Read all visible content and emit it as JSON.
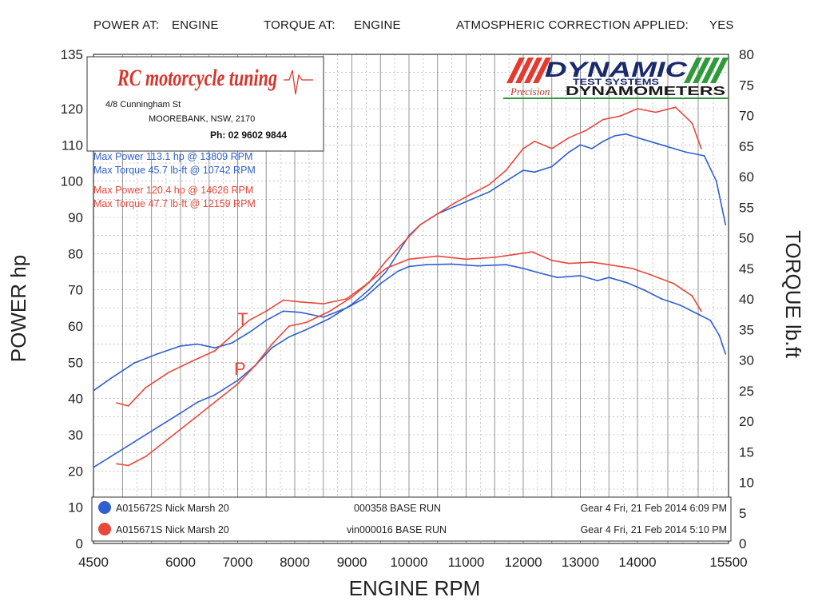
{
  "header": {
    "power_at_label": "POWER AT:",
    "power_at_value": "ENGINE",
    "torque_at_label": "TORQUE AT:",
    "torque_at_value": "ENGINE",
    "correction_label": "ATMOSPHERIC CORRECTION APPLIED:",
    "correction_value": "YES"
  },
  "shop": {
    "logo_text": "RC motorcycle tuning",
    "address1": "4/8 Cunningham St",
    "address2": "MOOREBANK, NSW, 2170",
    "phone": "Ph: 02 9602 9844"
  },
  "brand": {
    "name": "DYNAMIC",
    "sub": "TEST SYSTEMS",
    "tag1": "Precision",
    "tag2": "DYNAMOMETERS"
  },
  "summary": {
    "blue_power": "Max Power 113.1 hp @ 13809 RPM",
    "blue_torque": "Max Torque 45.7 lb-ft @ 10742 RPM",
    "red_power": "Max Power 120.4 hp @ 14626 RPM",
    "red_torque": "Max Torque 47.7 lb-ft @ 12159 RPM"
  },
  "curve_labels": {
    "torque": "T",
    "power": "P"
  },
  "runs": [
    {
      "id": "A015672S Nick Marsh 20",
      "run": "000358 BASE RUN",
      "info": "Gear 4 Fri, 21 Feb 2014 6:09 PM",
      "color": "#2f5fd0"
    },
    {
      "id": "A015671S Nick Marsh 20",
      "run": "vin000016 BASE RUN",
      "info": "Gear 4 Fri, 21 Feb 2014 5:10 PM",
      "color": "#e8473a"
    }
  ],
  "colors": {
    "blue": "#2f5fd0",
    "red": "#e8473a",
    "grid": "#6b6b6b"
  },
  "chart_data": {
    "type": "line",
    "xlabel": "ENGINE RPM",
    "ylabel": "POWER hp",
    "y2label": "TORQUE lb.ft",
    "xlim": [
      4500,
      15500
    ],
    "ylim": [
      0,
      135
    ],
    "y2lim": [
      0,
      80
    ],
    "x_ticks": [
      "4500",
      "6000",
      "7000",
      "8000",
      "9000",
      "10000",
      "11000",
      "12000",
      "13000",
      "14000",
      "15500"
    ],
    "y_ticks": [
      "0",
      "10",
      "20",
      "30",
      "40",
      "50",
      "60",
      "70",
      "80",
      "90",
      "100",
      "110",
      "120",
      "135"
    ],
    "y2_ticks": [
      "0",
      "5",
      "10",
      "15",
      "20",
      "25",
      "30",
      "35",
      "40",
      "45",
      "50",
      "55",
      "60",
      "65",
      "70",
      "75",
      "80"
    ],
    "grid": true,
    "series": [
      {
        "name": "A015672S Nick Marsh 20",
        "color": "#2f5fd0",
        "measure": "power",
        "axis": "left",
        "points": [
          [
            4500,
            21
          ],
          [
            4800,
            24
          ],
          [
            5200,
            28
          ],
          [
            5600,
            32
          ],
          [
            6000,
            36
          ],
          [
            6300,
            39
          ],
          [
            6600,
            41
          ],
          [
            7000,
            45
          ],
          [
            7300,
            49
          ],
          [
            7600,
            54
          ],
          [
            7900,
            57
          ],
          [
            8200,
            59
          ],
          [
            8600,
            62
          ],
          [
            9000,
            66
          ],
          [
            9300,
            70
          ],
          [
            9600,
            75
          ],
          [
            9800,
            80
          ],
          [
            10000,
            85
          ],
          [
            10200,
            88
          ],
          [
            10500,
            91
          ],
          [
            10800,
            93
          ],
          [
            11100,
            95
          ],
          [
            11400,
            97
          ],
          [
            11700,
            100
          ],
          [
            12000,
            103
          ],
          [
            12200,
            102.5
          ],
          [
            12500,
            104
          ],
          [
            12800,
            108
          ],
          [
            13000,
            110
          ],
          [
            13200,
            109
          ],
          [
            13400,
            111
          ],
          [
            13600,
            112.5
          ],
          [
            13800,
            113
          ],
          [
            14000,
            112
          ],
          [
            14200,
            111
          ],
          [
            14400,
            110
          ],
          [
            14600,
            109
          ],
          [
            14800,
            108
          ],
          [
            15100,
            107
          ],
          [
            15300,
            100
          ],
          [
            15450,
            88
          ]
        ]
      },
      {
        "name": "A015672S Nick Marsh 20",
        "color": "#2f5fd0",
        "measure": "torque",
        "axis": "right",
        "points": [
          [
            4500,
            25
          ],
          [
            4800,
            27
          ],
          [
            5200,
            29.5
          ],
          [
            5600,
            31
          ],
          [
            6000,
            32.3
          ],
          [
            6300,
            32.6
          ],
          [
            6600,
            32
          ],
          [
            6900,
            32.8
          ],
          [
            7200,
            34.5
          ],
          [
            7500,
            36.5
          ],
          [
            7800,
            38
          ],
          [
            8100,
            37.8
          ],
          [
            8500,
            37
          ],
          [
            8900,
            38.5
          ],
          [
            9200,
            40
          ],
          [
            9500,
            42.5
          ],
          [
            9800,
            44.5
          ],
          [
            10000,
            45.3
          ],
          [
            10300,
            45.6
          ],
          [
            10742,
            45.7
          ],
          [
            11200,
            45.4
          ],
          [
            11700,
            45.6
          ],
          [
            12000,
            45
          ],
          [
            12300,
            44.2
          ],
          [
            12600,
            43.5
          ],
          [
            13000,
            43.8
          ],
          [
            13300,
            43
          ],
          [
            13500,
            43.5
          ],
          [
            13800,
            42.7
          ],
          [
            14100,
            41.5
          ],
          [
            14400,
            40
          ],
          [
            14700,
            39
          ],
          [
            15000,
            37.5
          ],
          [
            15200,
            36.5
          ],
          [
            15350,
            34
          ],
          [
            15450,
            31
          ]
        ]
      },
      {
        "name": "A015671S Nick Marsh 20",
        "color": "#e8473a",
        "measure": "power",
        "axis": "left",
        "points": [
          [
            4900,
            22
          ],
          [
            5100,
            21.5
          ],
          [
            5400,
            24
          ],
          [
            5800,
            29
          ],
          [
            6200,
            34
          ],
          [
            6600,
            39
          ],
          [
            7000,
            44
          ],
          [
            7300,
            49
          ],
          [
            7600,
            55
          ],
          [
            7900,
            60
          ],
          [
            8200,
            61
          ],
          [
            8600,
            64
          ],
          [
            9000,
            68
          ],
          [
            9300,
            72
          ],
          [
            9600,
            78
          ],
          [
            9900,
            83
          ],
          [
            10200,
            88
          ],
          [
            10500,
            91
          ],
          [
            10800,
            94
          ],
          [
            11100,
            96.5
          ],
          [
            11400,
            99
          ],
          [
            11700,
            103
          ],
          [
            12000,
            109
          ],
          [
            12200,
            111
          ],
          [
            12500,
            109
          ],
          [
            12800,
            112
          ],
          [
            13100,
            114
          ],
          [
            13400,
            117
          ],
          [
            13700,
            118
          ],
          [
            14000,
            120
          ],
          [
            14300,
            119
          ],
          [
            14626,
            120.4
          ],
          [
            14900,
            116
          ],
          [
            15050,
            109
          ]
        ]
      },
      {
        "name": "A015671S Nick Marsh 20",
        "color": "#e8473a",
        "measure": "torque",
        "axis": "right",
        "points": [
          [
            4900,
            23
          ],
          [
            5100,
            22.5
          ],
          [
            5400,
            25.5
          ],
          [
            5800,
            28
          ],
          [
            6200,
            29.8
          ],
          [
            6600,
            31.5
          ],
          [
            6900,
            34
          ],
          [
            7200,
            36.5
          ],
          [
            7500,
            38
          ],
          [
            7800,
            39.8
          ],
          [
            8100,
            39.5
          ],
          [
            8500,
            39.2
          ],
          [
            8900,
            40
          ],
          [
            9200,
            42
          ],
          [
            9600,
            45
          ],
          [
            10000,
            46.5
          ],
          [
            10500,
            47
          ],
          [
            11000,
            46.5
          ],
          [
            11500,
            46.8
          ],
          [
            11800,
            47.2
          ],
          [
            12159,
            47.7
          ],
          [
            12500,
            46.3
          ],
          [
            12800,
            45.8
          ],
          [
            13200,
            46
          ],
          [
            13500,
            45.6
          ],
          [
            13900,
            45
          ],
          [
            14200,
            44
          ],
          [
            14600,
            42.5
          ],
          [
            14900,
            40.5
          ],
          [
            15050,
            38
          ]
        ]
      }
    ]
  }
}
